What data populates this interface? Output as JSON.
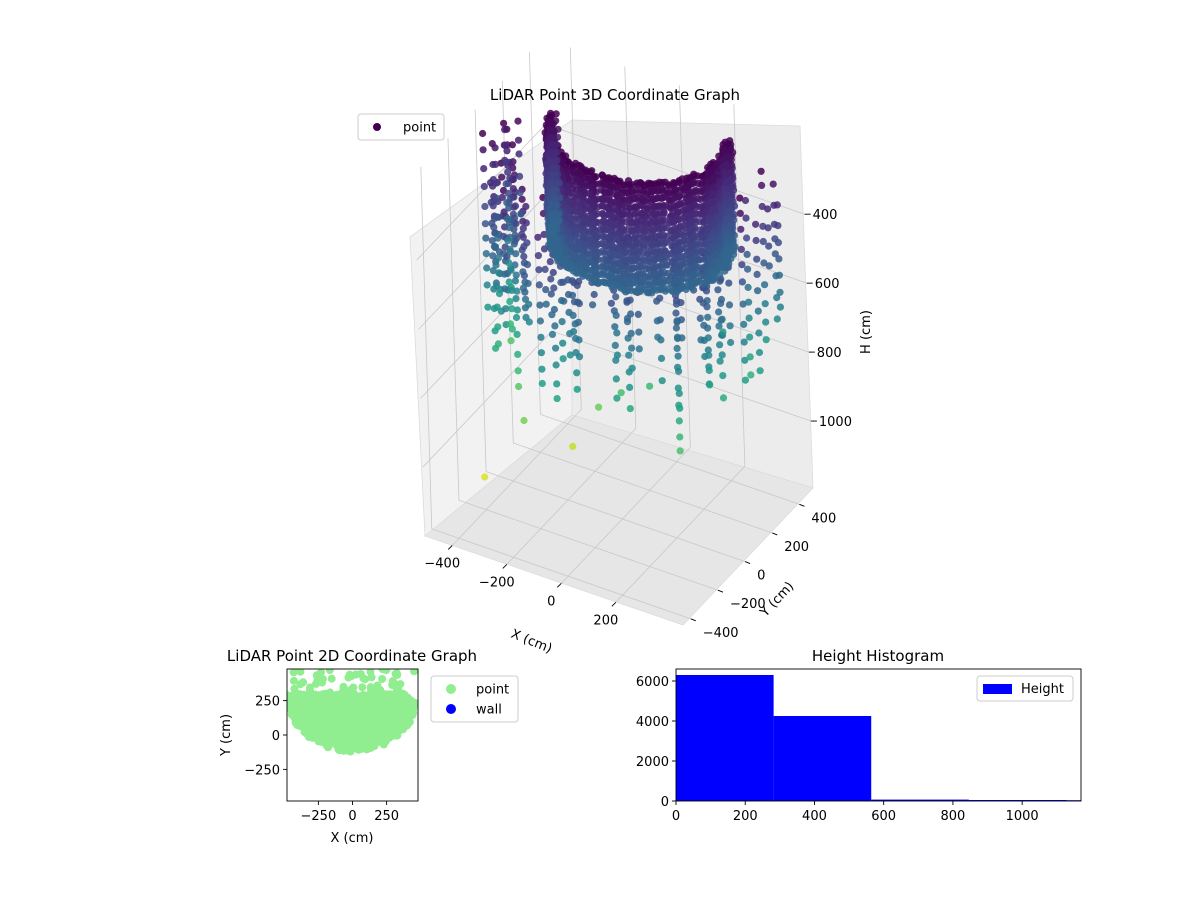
{
  "chart_data": [
    {
      "type": "scatter3d",
      "title": "LiDAR Point 3D Coordinate Graph",
      "xlabel": "X (cm)",
      "ylabel": "Y (cm)",
      "zlabel": "H (cm)",
      "xticks": [
        -400,
        -200,
        0,
        200
      ],
      "yticks": [
        -400,
        -200,
        0,
        200,
        400
      ],
      "zticks": [
        400,
        600,
        800,
        1000
      ],
      "xlim": [
        -500,
        450
      ],
      "ylim": [
        -450,
        500
      ],
      "zlim": [
        1200,
        150
      ],
      "zaxis_inverted": true,
      "colormap": "viridis",
      "grid": true,
      "legend": {
        "position": "upper-left",
        "entries": [
          "point"
        ]
      },
      "series": [
        {
          "name": "point",
          "shape": "ring",
          "radius_range": [
            150,
            400
          ],
          "height_range": [
            150,
            480
          ]
        },
        {
          "name": "point",
          "shape": "scattered-columns",
          "height_range": [
            150,
            1000
          ]
        }
      ]
    },
    {
      "type": "scatter",
      "title": "LiDAR Point 2D Coordinate Graph",
      "xlabel": "X (cm)",
      "ylabel": "Y (cm)",
      "xticks": [
        -250,
        0,
        250
      ],
      "yticks": [
        -250,
        0,
        250
      ],
      "xlim": [
        -480,
        480
      ],
      "ylim": [
        -480,
        480
      ],
      "legend": {
        "position": "outside-right",
        "entries": [
          "point",
          "wall"
        ]
      },
      "series": [
        {
          "name": "point",
          "color": "#90ee90",
          "region": "half-disc",
          "center": [
            0,
            300
          ],
          "radius": 420
        },
        {
          "name": "wall",
          "color": "#0000ff",
          "points": []
        }
      ]
    },
    {
      "type": "histogram",
      "title": "Height Histogram",
      "xticks": [
        0,
        200,
        400,
        600,
        800,
        1000
      ],
      "yticks": [
        0,
        2000,
        4000,
        6000
      ],
      "xlim": [
        0,
        1170
      ],
      "ylim": [
        0,
        6600
      ],
      "legend": {
        "position": "top-right",
        "entries": [
          "Height"
        ]
      },
      "color": "#0000ff",
      "bins": [
        {
          "x0": 0,
          "x1": 282,
          "count": 6300
        },
        {
          "x0": 282,
          "x1": 564,
          "count": 4250
        },
        {
          "x0": 564,
          "x1": 846,
          "count": 70
        },
        {
          "x0": 846,
          "x1": 1128,
          "count": 50
        },
        {
          "x0": 1128,
          "x1": 1170,
          "count": 40
        }
      ]
    }
  ]
}
